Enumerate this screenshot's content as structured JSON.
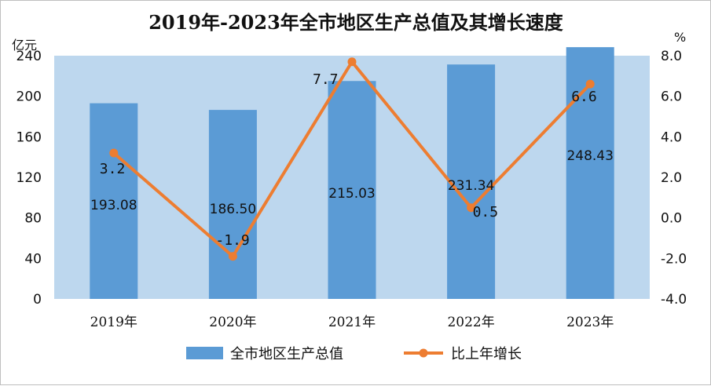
{
  "chart_data": {
    "type": "bar",
    "title": "2019年-2023年全市地区生产总值及其增长速度",
    "categories": [
      "2019年",
      "2020年",
      "2021年",
      "2022年",
      "2023年"
    ],
    "series": [
      {
        "name": "全市地区生产总值",
        "type": "bar",
        "axis": "left",
        "values": [
          193.08,
          186.5,
          215.03,
          231.34,
          248.43
        ],
        "labels": [
          "193.08",
          "186.50",
          "215.03",
          "231.34",
          "248.43"
        ],
        "color": "#5B9BD5"
      },
      {
        "name": "比上年增长",
        "type": "line",
        "axis": "right",
        "values": [
          3.2,
          -1.9,
          7.7,
          0.5,
          6.6
        ],
        "labels": [
          "3.2",
          "-1.9",
          "7.7",
          "0.5",
          "6.6"
        ],
        "color": "#ED7D31"
      }
    ],
    "y_left": {
      "unit": "亿元",
      "ylim": [
        0,
        240
      ],
      "ticks": [
        "0",
        "40",
        "80",
        "120",
        "160",
        "200",
        "240"
      ]
    },
    "y_right": {
      "unit": "%",
      "ylim": [
        -4.0,
        8.0
      ],
      "ticks": [
        "-4.0",
        "-2.0",
        "0.0",
        "2.0",
        "4.0",
        "6.0",
        "8.0"
      ]
    },
    "plot_background": "#BDD7EE",
    "grid": false,
    "legend_position": "bottom"
  }
}
